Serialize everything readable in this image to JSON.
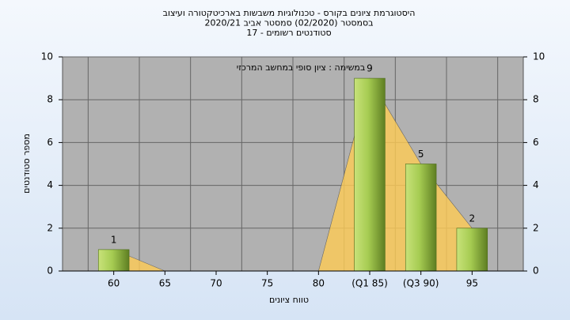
{
  "chart_data": {
    "type": "bar",
    "title": [
      "היסטוגרמת ציונים בקורס - טכנולוגיות משבשות בארכיטקטורה ועיצוב",
      "בסמסטר  (02/2020)  סמסטר אביב 2020/21",
      "סטודנטים רשומים - 17"
    ],
    "annotation": "במשימה : ציון סופי במחשב המרכזי",
    "x_label": "טווח ציונים",
    "y_label": "מספר סטודנטים",
    "categories": [
      "60",
      "65",
      "70",
      "75",
      "80",
      "(Q1 85)",
      "(Q3 90)",
      "95"
    ],
    "values": [
      1,
      0,
      0,
      0,
      0,
      9,
      5,
      2
    ],
    "color": "#9bc34a",
    "ylim": [
      0,
      10
    ],
    "yticks": [
      0,
      2,
      4,
      6,
      8,
      10
    ],
    "y2lim": [
      0,
      10
    ],
    "y2ticks": [
      0,
      2,
      4,
      6,
      8,
      10
    ],
    "grid": true
  }
}
